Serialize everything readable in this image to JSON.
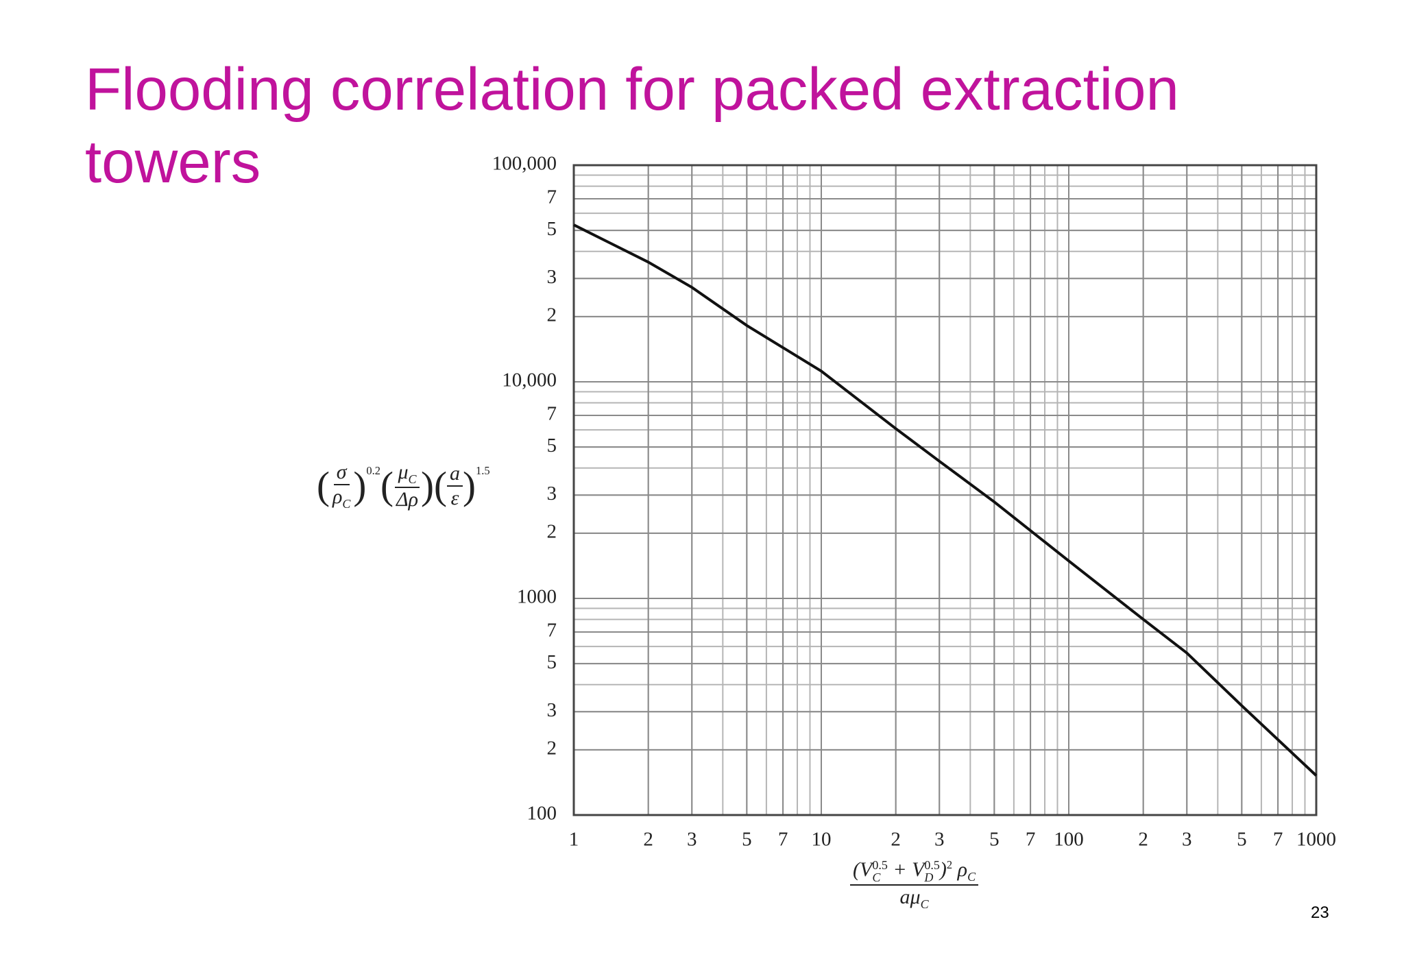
{
  "title": "Flooding correlation for packed extraction towers",
  "page_number": "23",
  "chart_data": {
    "type": "line",
    "log_x": true,
    "log_y": true,
    "grid": true,
    "minor_grid": true,
    "xlim": [
      1,
      1000
    ],
    "ylim": [
      100,
      100000
    ],
    "xticks": [
      1,
      2,
      3,
      5,
      7,
      10,
      {
        "value": 20,
        "label": "2"
      },
      {
        "value": 30,
        "label": "3"
      },
      {
        "value": 50,
        "label": "5"
      },
      {
        "value": 70,
        "label": "7"
      },
      100,
      {
        "value": 200,
        "label": "2"
      },
      {
        "value": 300,
        "label": "3"
      },
      {
        "value": 500,
        "label": "5"
      },
      {
        "value": 700,
        "label": "7"
      },
      1000
    ],
    "yticks": [
      100,
      {
        "value": 200,
        "label": "2"
      },
      {
        "value": 300,
        "label": "3"
      },
      {
        "value": 500,
        "label": "5"
      },
      {
        "value": 700,
        "label": "7"
      },
      1000,
      {
        "value": 2000,
        "label": "2"
      },
      {
        "value": 3000,
        "label": "3"
      },
      {
        "value": 5000,
        "label": "5"
      },
      {
        "value": 7000,
        "label": "7"
      },
      {
        "value": 10000,
        "label": "10,000"
      },
      {
        "value": 20000,
        "label": "2"
      },
      {
        "value": 30000,
        "label": "3"
      },
      {
        "value": 50000,
        "label": "5"
      },
      {
        "value": 70000,
        "label": "7"
      },
      {
        "value": 100000,
        "label": "100,000"
      }
    ],
    "series": [
      {
        "color": "#111111",
        "x": [
          1,
          2,
          3,
          5,
          10,
          20,
          30,
          50,
          100,
          200,
          300,
          500,
          1000
        ],
        "values": [
          53000,
          35700,
          27300,
          18200,
          11200,
          6080,
          4300,
          2790,
          1490,
          800,
          560,
          320,
          152
        ]
      }
    ],
    "ylabel": [
      {
        "num": "σ",
        "den": "ρ",
        "den_sub": "C",
        "exp": "0.2"
      },
      {
        "num": "μ",
        "num_sub": "C",
        "den": "Δρ"
      },
      {
        "num": "a",
        "den": "ε",
        "exp": "1.5"
      }
    ],
    "xlabel": {
      "numerator": [
        {
          "t": "(V"
        },
        {
          "sup": "0.5",
          "sub": "C"
        },
        {
          "t": " + V"
        },
        {
          "sup": "0.5",
          "sub": "D"
        },
        {
          "t": ")"
        },
        {
          "sup": "2"
        },
        {
          "t": " ρ"
        },
        {
          "sub": "C"
        }
      ],
      "denominator": [
        {
          "t": "aμ"
        },
        {
          "sub": "C"
        }
      ]
    }
  }
}
